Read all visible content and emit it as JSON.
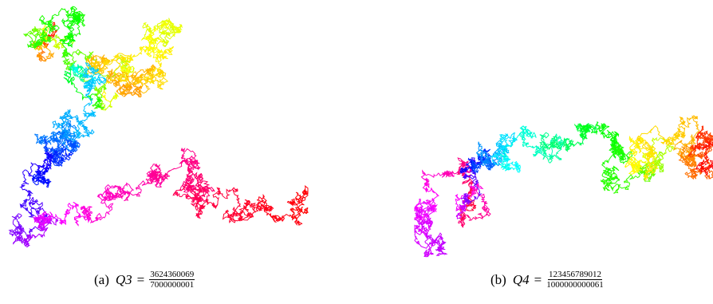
{
  "figures": [
    {
      "label": "(a)",
      "variable": "Q3",
      "relation": "=",
      "numerator": "3624360069",
      "denominator": "7000000001"
    },
    {
      "label": "(b)",
      "variable": "Q4",
      "relation": "=",
      "numerator": "123456789012",
      "denominator": "1000000000061"
    }
  ]
}
